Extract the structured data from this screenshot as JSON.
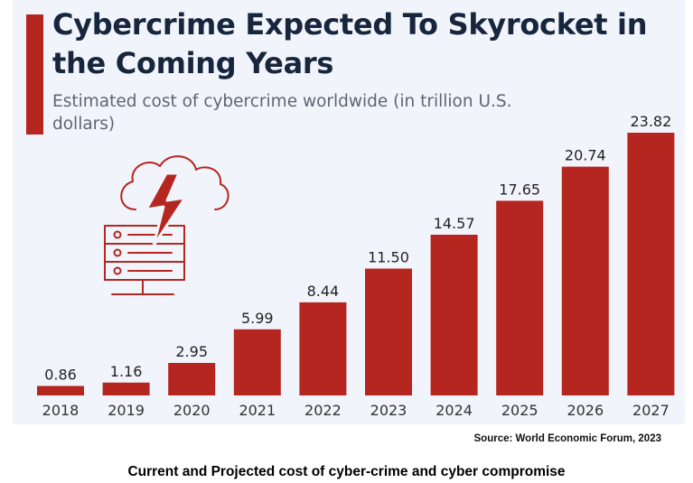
{
  "header": {
    "title": "Cybercrime Expected To Skyrocket in the Coming Years",
    "subtitle": "Estimated cost of cybercrime worldwide (in trillion U.S. dollars)"
  },
  "icon": "cloud-server-lightning-icon",
  "colors": {
    "bar": "#b52620",
    "title": "#17263d",
    "panel": "#f1f4fa",
    "accent": "#b52620"
  },
  "chart_data": {
    "type": "bar",
    "title": "Cybercrime Expected To Skyrocket in the Coming Years",
    "subtitle": "Estimated cost of cybercrime worldwide (in trillion U.S. dollars)",
    "categories": [
      "2018",
      "2019",
      "2020",
      "2021",
      "2022",
      "2023",
      "2024",
      "2025",
      "2026",
      "2027"
    ],
    "values": [
      0.86,
      1.16,
      2.95,
      5.99,
      8.44,
      11.5,
      14.57,
      17.65,
      20.74,
      23.82
    ],
    "value_labels": [
      "0.86",
      "1.16",
      "2.95",
      "5.99",
      "8.44",
      "11.50",
      "14.57",
      "17.65",
      "20.74",
      "23.82"
    ],
    "ylabel": "",
    "xlabel": "",
    "ylim": [
      0,
      23.82
    ],
    "grid": false,
    "legend": "none"
  },
  "source": "Source: World Economic Forum, 2023",
  "caption": "Current and Projected cost of cyber-crime and cyber compromise"
}
